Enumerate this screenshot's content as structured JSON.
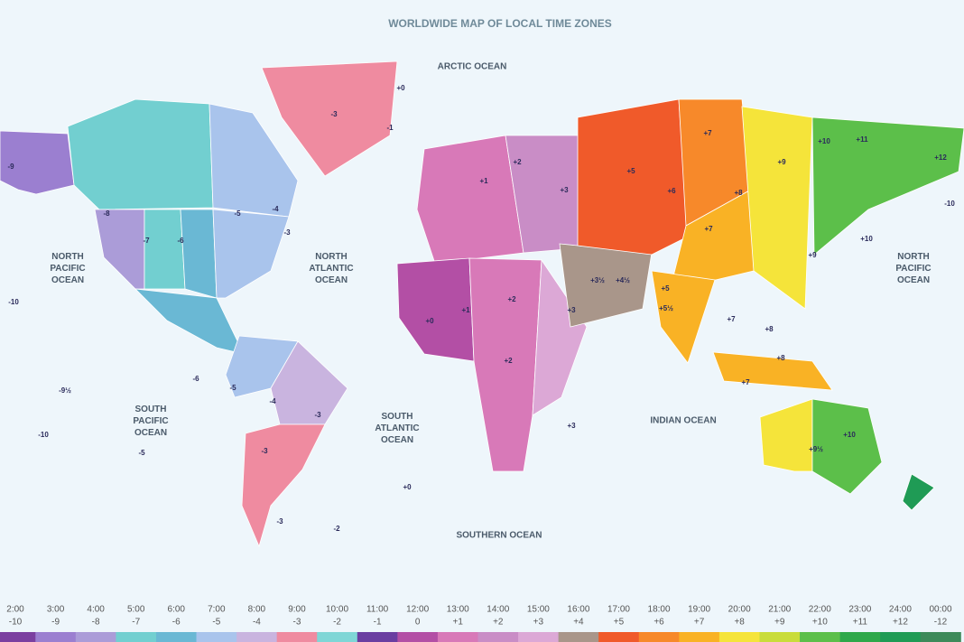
{
  "title": "WORLDWIDE MAP OF LOCAL TIME ZONES",
  "oceans": [
    "ARCTIC OCEAN",
    "NORTH PACIFIC OCEAN",
    "NORTH ATLANTIC OCEAN",
    "SOUTH PACIFIC OCEAN",
    "SOUTH ATLANTIC OCEAN",
    "INDIAN OCEAN",
    "NORTH PACIFIC OCEAN",
    "SOUTHERN OCEAN"
  ],
  "zone_labels": [
    "-9",
    "-8",
    "-7",
    "-6",
    "-5",
    "-4",
    "-3",
    "+0",
    "-1",
    "-3",
    "+1",
    "+2",
    "+3",
    "+5",
    "+6",
    "+7",
    "+7",
    "+8",
    "+9",
    "+10",
    "+11",
    "+12",
    "-10",
    "+10",
    "+9",
    "+0",
    "+1",
    "+2",
    "+3",
    "+3½",
    "+4½",
    "+5",
    "+5½",
    "+7",
    "+8",
    "+8",
    "+7",
    "-5",
    "-4",
    "-3",
    "-3",
    "+2",
    "+3",
    "-10",
    "-9½",
    "-10",
    "-5",
    "-6",
    "+9½",
    "+10",
    "+0",
    "-3",
    "-2"
  ],
  "legend": [
    {
      "time": "2:00",
      "offset": "-10",
      "color": "#7b3fa0"
    },
    {
      "time": "3:00",
      "offset": "-9",
      "color": "#9b7fd0"
    },
    {
      "time": "4:00",
      "offset": "-8",
      "color": "#ab9cd8"
    },
    {
      "time": "5:00",
      "offset": "-7",
      "color": "#72cfd0"
    },
    {
      "time": "6:00",
      "offset": "-6",
      "color": "#6ab8d4"
    },
    {
      "time": "7:00",
      "offset": "-5",
      "color": "#a9c4ec"
    },
    {
      "time": "8:00",
      "offset": "-4",
      "color": "#c9b4df"
    },
    {
      "time": "9:00",
      "offset": "-3",
      "color": "#ef8ba0"
    },
    {
      "time": "10:00",
      "offset": "-2",
      "color": "#7fd6d6"
    },
    {
      "time": "11:00",
      "offset": "-1",
      "color": "#6a3ea1"
    },
    {
      "time": "12:00",
      "offset": "0",
      "color": "#b34fa5"
    },
    {
      "time": "13:00",
      "offset": "+1",
      "color": "#d879b8"
    },
    {
      "time": "14:00",
      "offset": "+2",
      "color": "#c98dc6"
    },
    {
      "time": "15:00",
      "offset": "+3",
      "color": "#dca8d6"
    },
    {
      "time": "16:00",
      "offset": "+4",
      "color": "#a9968a"
    },
    {
      "time": "17:00",
      "offset": "+5",
      "color": "#f05a2a"
    },
    {
      "time": "18:00",
      "offset": "+6",
      "color": "#f7892a"
    },
    {
      "time": "19:00",
      "offset": "+7",
      "color": "#f9b225"
    },
    {
      "time": "20:00",
      "offset": "+8",
      "color": "#f5e43a"
    },
    {
      "time": "21:00",
      "offset": "+9",
      "color": "#c9dc3a"
    },
    {
      "time": "22:00",
      "offset": "+10",
      "color": "#5cbf4a"
    },
    {
      "time": "23:00",
      "offset": "+11",
      "color": "#2ea84a"
    },
    {
      "time": "24:00",
      "offset": "+12",
      "color": "#1f9b55"
    },
    {
      "time": "00:00",
      "offset": "-12",
      "color": "#3d8a5a"
    }
  ]
}
